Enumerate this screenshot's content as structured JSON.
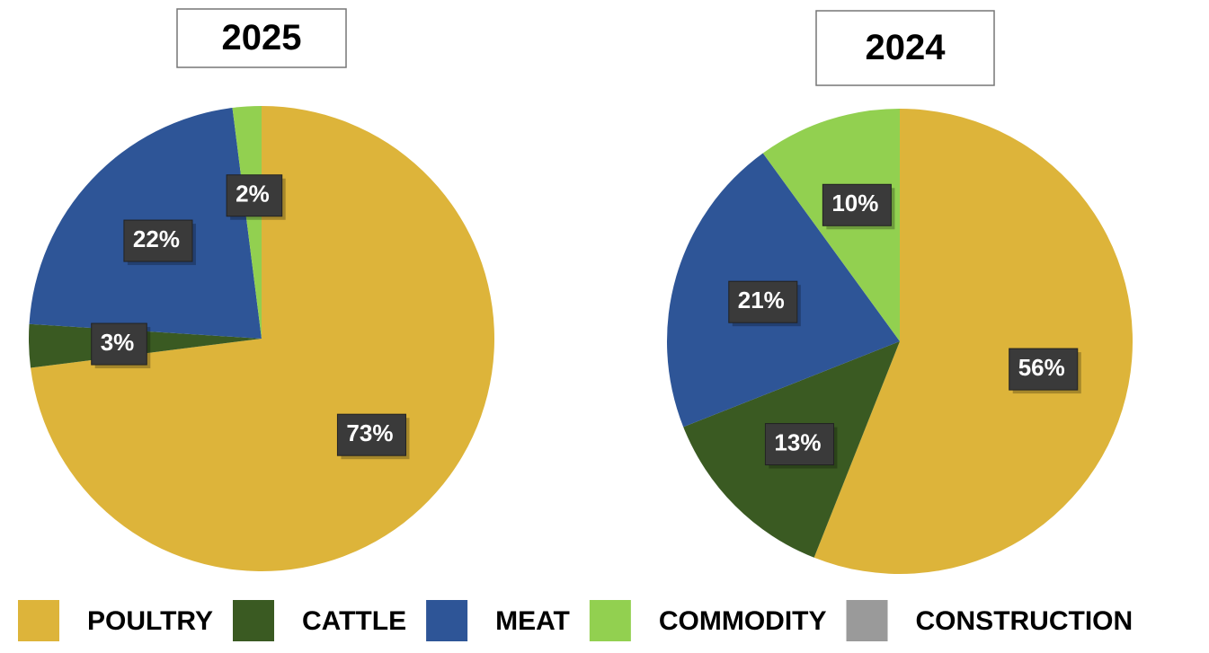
{
  "chart_data": [
    {
      "type": "pie",
      "title": "2025",
      "categories": [
        "POULTRY",
        "CATTLE",
        "MEAT",
        "COMMODITY",
        "CONSTRUCTION"
      ],
      "values": [
        73,
        3,
        22,
        2,
        0
      ],
      "value_labels": [
        "73%",
        "3%",
        "22%",
        "2%",
        null
      ],
      "colors": [
        "#ddb43a",
        "#3a5a22",
        "#2e5597",
        "#92d050",
        "#9a9a9a"
      ]
    },
    {
      "type": "pie",
      "title": "2024",
      "categories": [
        "POULTRY",
        "CATTLE",
        "MEAT",
        "COMMODITY",
        "CONSTRUCTION"
      ],
      "values": [
        56,
        13,
        21,
        10,
        0
      ],
      "value_labels": [
        "56%",
        "13%",
        "21%",
        "10%",
        null
      ],
      "colors": [
        "#ddb43a",
        "#3a5a22",
        "#2e5597",
        "#92d050",
        "#9a9a9a"
      ]
    }
  ]
}
